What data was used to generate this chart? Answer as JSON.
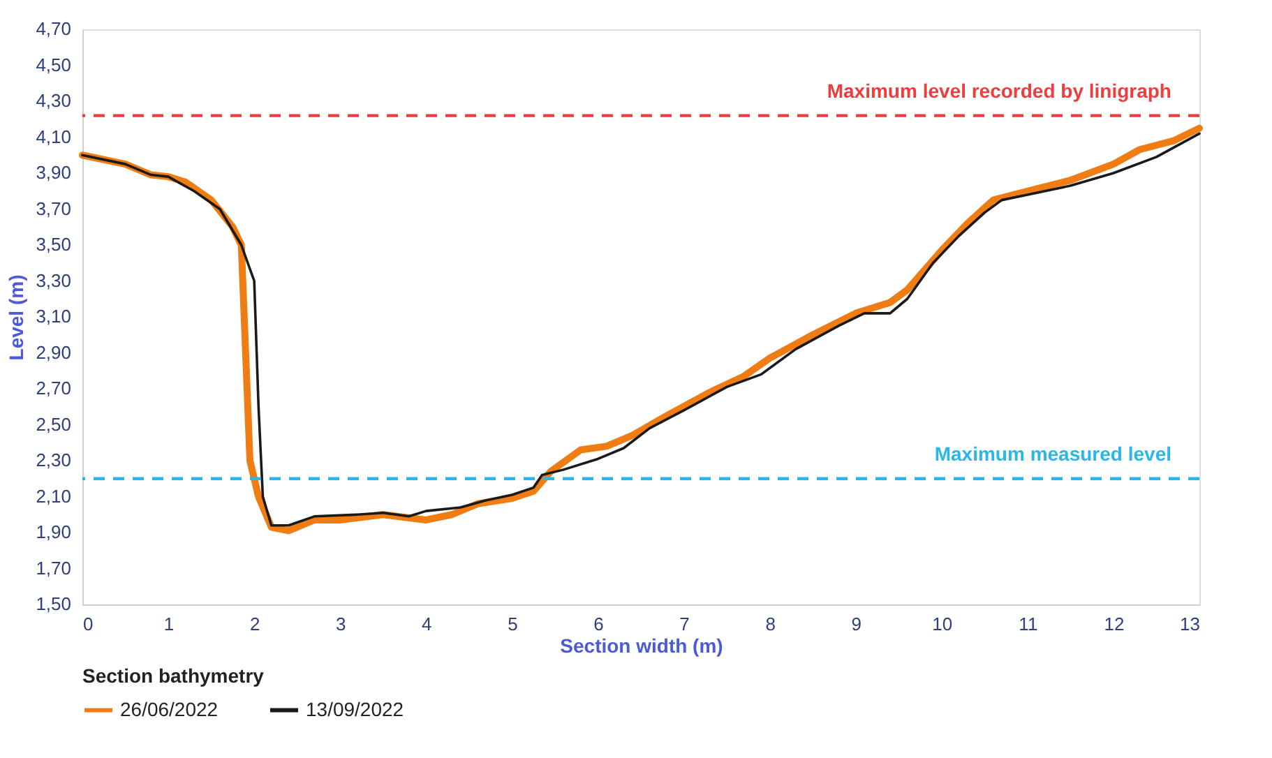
{
  "chart_data": {
    "type": "line",
    "xlabel": "Section width (m)",
    "ylabel": "Level (m)",
    "legend_title": "Section bathymetry",
    "xlim": [
      0,
      13
    ],
    "xticks": [
      0,
      1,
      2,
      3,
      4,
      5,
      6,
      7,
      8,
      9,
      10,
      11,
      12,
      13
    ],
    "ylim": [
      1.5,
      4.7
    ],
    "yticks": [
      {
        "value": 1.5,
        "label": "1,50"
      },
      {
        "value": 1.7,
        "label": "1,70"
      },
      {
        "value": 1.9,
        "label": "1,90"
      },
      {
        "value": 2.1,
        "label": "2,10"
      },
      {
        "value": 2.3,
        "label": "2,30"
      },
      {
        "value": 2.5,
        "label": "2,50"
      },
      {
        "value": 2.7,
        "label": "2,70"
      },
      {
        "value": 2.9,
        "label": "2,90"
      },
      {
        "value": 3.1,
        "label": "3,10"
      },
      {
        "value": 3.3,
        "label": "3,30"
      },
      {
        "value": 3.5,
        "label": "3,50"
      },
      {
        "value": 3.7,
        "label": "3,70"
      },
      {
        "value": 3.9,
        "label": "3,90"
      },
      {
        "value": 4.1,
        "label": "4,10"
      },
      {
        "value": 4.3,
        "label": "4,30"
      },
      {
        "value": 4.5,
        "label": "4,50"
      },
      {
        "value": 4.7,
        "label": "4,70"
      }
    ],
    "grid": false,
    "legend": "bottom",
    "line_style": "solid",
    "marker": "none",
    "series": [
      {
        "name": "26/06/2022",
        "color": "#f07d14",
        "x": [
          0,
          0.5,
          0.8,
          1.0,
          1.2,
          1.5,
          1.75,
          1.85,
          1.95,
          2.05,
          2.2,
          2.4,
          2.7,
          3.0,
          3.5,
          4.0,
          4.3,
          4.6,
          5.0,
          5.25,
          5.45,
          5.8,
          6.1,
          6.4,
          6.8,
          7.3,
          7.7,
          8.0,
          8.5,
          9.0,
          9.4,
          9.6,
          10.0,
          10.3,
          10.6,
          11.0,
          11.5,
          12.0,
          12.3,
          12.7,
          13.0
        ],
        "values": [
          4.0,
          3.95,
          3.89,
          3.88,
          3.85,
          3.75,
          3.6,
          3.5,
          2.3,
          2.1,
          1.93,
          1.91,
          1.97,
          1.97,
          2.0,
          1.97,
          2.0,
          2.06,
          2.09,
          2.13,
          2.24,
          2.36,
          2.38,
          2.44,
          2.55,
          2.68,
          2.77,
          2.87,
          3.0,
          3.12,
          3.18,
          3.25,
          3.47,
          3.62,
          3.75,
          3.8,
          3.86,
          3.95,
          4.03,
          4.08,
          4.15
        ]
      },
      {
        "name": "13/09/2022",
        "color": "#1a1a1a",
        "x": [
          0,
          0.5,
          0.8,
          1.0,
          1.3,
          1.6,
          1.85,
          2.0,
          2.05,
          2.1,
          2.2,
          2.4,
          2.7,
          3.2,
          3.5,
          3.8,
          4.0,
          4.4,
          4.7,
          5.0,
          5.25,
          5.35,
          5.6,
          6.0,
          6.3,
          6.6,
          7.0,
          7.5,
          7.9,
          8.3,
          8.8,
          9.1,
          9.4,
          9.6,
          9.9,
          10.2,
          10.5,
          10.7,
          11.0,
          11.5,
          12.0,
          12.5,
          13.0
        ],
        "values": [
          4.0,
          3.95,
          3.89,
          3.88,
          3.8,
          3.7,
          3.5,
          3.3,
          2.6,
          2.1,
          1.94,
          1.94,
          1.99,
          2.0,
          2.01,
          1.99,
          2.02,
          2.04,
          2.08,
          2.11,
          2.15,
          2.22,
          2.25,
          2.31,
          2.37,
          2.48,
          2.58,
          2.71,
          2.78,
          2.92,
          3.05,
          3.12,
          3.12,
          3.2,
          3.4,
          3.55,
          3.68,
          3.75,
          3.78,
          3.83,
          3.9,
          3.99,
          4.12
        ]
      }
    ],
    "ref_lines": [
      {
        "axis": "y",
        "value": 4.22,
        "label": "Maximum level recorded by linigraph",
        "color": "#f03c3c",
        "line_style": "dashed"
      },
      {
        "axis": "y",
        "value": 2.2,
        "label": "Maximum measured level",
        "color": "#29b6e8",
        "line_style": "dashed"
      }
    ]
  }
}
